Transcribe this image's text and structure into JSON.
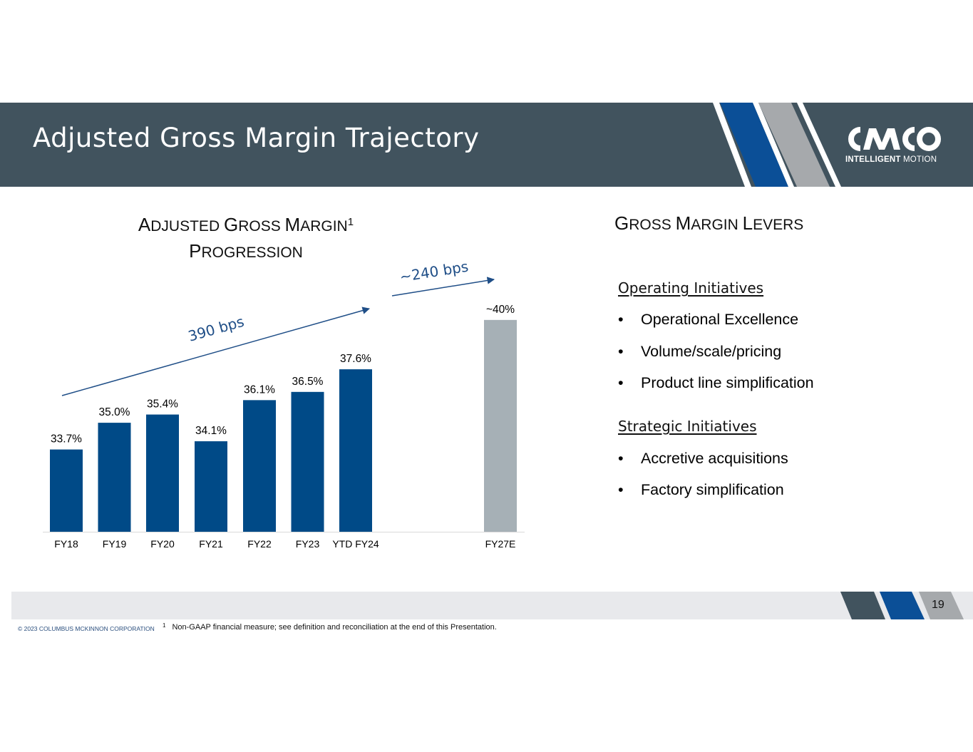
{
  "header": {
    "title": "Adjusted Gross Margin Trajectory"
  },
  "logo": {
    "word": "CMCO",
    "tagline_bold": "INTELLIGENT",
    "tagline_rest": "MOTION"
  },
  "colors": {
    "header_bg": "#41535e",
    "bar_actual": "#004a87",
    "bar_target": "#a6b0b6",
    "arrow": "#1f4e87",
    "stripe_blue": "#0b4f97",
    "stripe_grey": "#a6a9ac",
    "footer_bg": "#e8e9ec"
  },
  "chart_title": {
    "line1_caps": [
      "A",
      "G",
      "M"
    ],
    "line1_small": [
      "DJUSTED ",
      "ROSS ",
      "ARGIN"
    ],
    "sup": "1",
    "line2_cap": "P",
    "line2_small": "ROGRESSION"
  },
  "chart_data": {
    "type": "bar",
    "categories": [
      "FY18",
      "FY19",
      "FY20",
      "FY21",
      "FY22",
      "FY23",
      "YTD FY24",
      "FY27E"
    ],
    "values": [
      33.7,
      35.0,
      35.4,
      34.1,
      36.1,
      36.5,
      37.6,
      40.0
    ],
    "data_labels": [
      "33.7%",
      "35.0%",
      "35.4%",
      "34.1%",
      "36.1%",
      "36.5%",
      "37.6%",
      "~40%"
    ],
    "bar_kind": [
      "actual",
      "actual",
      "actual",
      "actual",
      "actual",
      "actual",
      "actual",
      "target"
    ],
    "ylabel": "",
    "xlabel": "",
    "grid": false,
    "annotations": [
      {
        "text": "390 bps",
        "from_category": "FY18",
        "to_category": "YTD FY24"
      },
      {
        "text": "~240 bps",
        "from_category": "YTD FY24",
        "to_category": "FY27E"
      }
    ]
  },
  "levers": {
    "title_caps": [
      "G",
      "M",
      "L"
    ],
    "title_small": [
      "ROSS ",
      "ARGIN ",
      "EVERS"
    ],
    "groups": [
      {
        "heading": "Operating Initiatives",
        "items": [
          "Operational Excellence",
          "Volume/scale/pricing",
          "Product line simplification"
        ]
      },
      {
        "heading": "Strategic Initiatives",
        "items": [
          "Accretive acquisitions",
          "Factory simplification"
        ]
      }
    ],
    "bullet": "•"
  },
  "footer": {
    "page_number": "19",
    "copyright": "© 2023 COLUMBUS MCKINNON CORPORATION",
    "footnote_marker": "1",
    "footnote": "Non-GAAP financial measure; see definition and reconciliation at the end of this Presentation."
  }
}
